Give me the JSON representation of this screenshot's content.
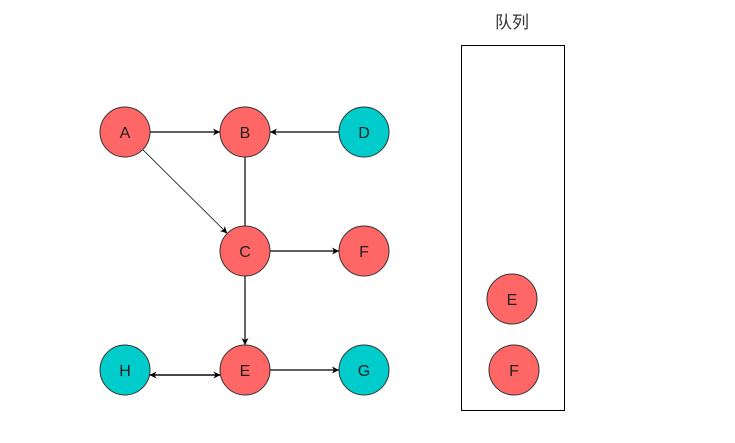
{
  "colors": {
    "visited": "#FF6666",
    "unvisited": "#00CCCC",
    "stroke": "#333333"
  },
  "graph": {
    "nodes": [
      {
        "id": "A",
        "label": "A",
        "state": "visited"
      },
      {
        "id": "B",
        "label": "B",
        "state": "visited"
      },
      {
        "id": "D",
        "label": "D",
        "state": "unvisited"
      },
      {
        "id": "C",
        "label": "C",
        "state": "visited"
      },
      {
        "id": "F",
        "label": "F",
        "state": "visited"
      },
      {
        "id": "H",
        "label": "H",
        "state": "unvisited"
      },
      {
        "id": "E",
        "label": "E",
        "state": "visited"
      },
      {
        "id": "G",
        "label": "G",
        "state": "unvisited"
      }
    ],
    "edges": [
      {
        "from": "A",
        "to": "B",
        "directed": true
      },
      {
        "from": "D",
        "to": "B",
        "directed": true
      },
      {
        "from": "A",
        "to": "C",
        "directed": true
      },
      {
        "from": "B",
        "to": "C",
        "directed": false
      },
      {
        "from": "C",
        "to": "F",
        "directed": true
      },
      {
        "from": "C",
        "to": "E",
        "directed": true
      },
      {
        "from": "H",
        "to": "E",
        "directed": true
      },
      {
        "from": "E",
        "to": "H",
        "directed": true
      },
      {
        "from": "E",
        "to": "G",
        "directed": true
      }
    ]
  },
  "queue": {
    "title": "队列",
    "items": [
      {
        "label": "E",
        "state": "visited"
      },
      {
        "label": "F",
        "state": "visited"
      }
    ]
  }
}
